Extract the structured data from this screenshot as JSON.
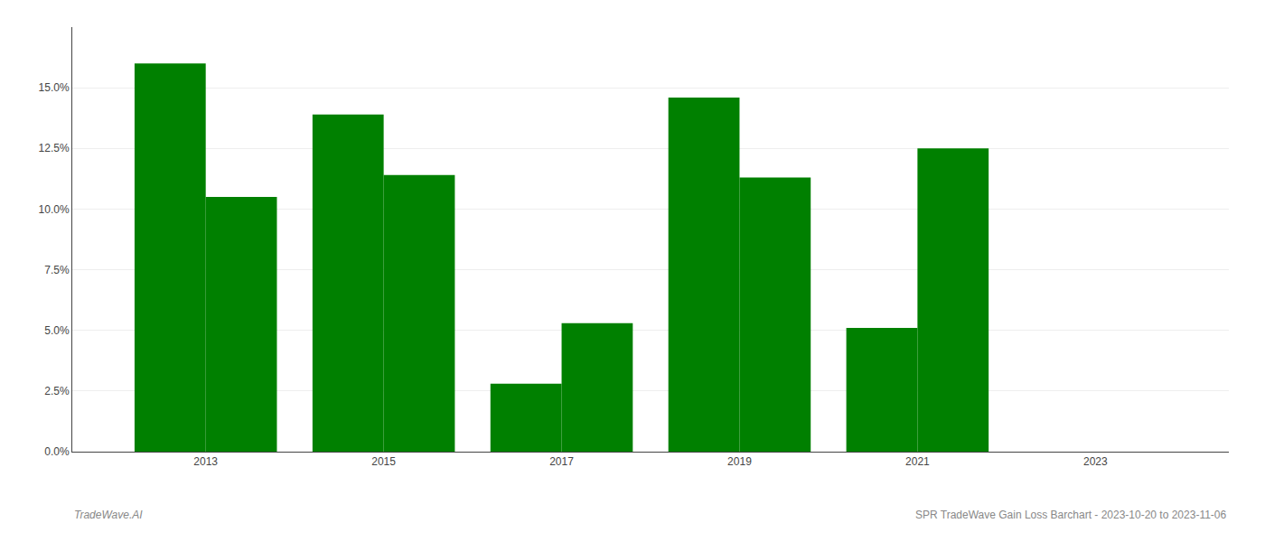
{
  "chart_data": {
    "type": "bar",
    "x": [
      2013,
      2015,
      2017,
      2019,
      2021
    ],
    "series": [
      {
        "values": [
          0.16,
          0.139,
          0.028,
          0.146,
          0.051
        ]
      },
      {
        "values": [
          0.105,
          0.114,
          0.053,
          0.113,
          0.125
        ]
      }
    ],
    "color": "#008000",
    "xlim": [
      2011.5,
      2024.5
    ],
    "xticks": [
      2013,
      2015,
      2017,
      2019,
      2021,
      2023
    ],
    "ylim": [
      0,
      0.175
    ],
    "yticks": [
      {
        "value": 0.0,
        "label": "0.0%"
      },
      {
        "value": 0.025,
        "label": "2.5%"
      },
      {
        "value": 0.05,
        "label": "5.0%"
      },
      {
        "value": 0.075,
        "label": "7.5%"
      },
      {
        "value": 0.1,
        "label": "10.0%"
      },
      {
        "value": 0.125,
        "label": "12.5%"
      },
      {
        "value": 0.15,
        "label": "15.0%"
      }
    ],
    "grid": true,
    "annotations": [
      "TradeWave.AI",
      "SPR TradeWave Gain Loss Barchart - 2023-10-20 to 2023-11-06"
    ]
  }
}
